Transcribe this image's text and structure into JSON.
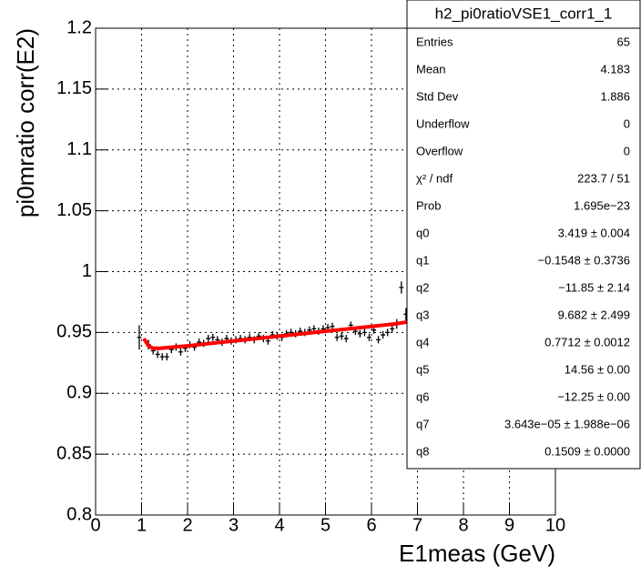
{
  "chart_data": {
    "type": "scatter",
    "x_label": "E1meas (GeV)",
    "y_label": "pi0mratio corr(E2)",
    "xlim": [
      0,
      10
    ],
    "xticks": [
      0,
      1,
      2,
      3,
      4,
      5,
      6,
      7,
      8,
      9,
      10
    ],
    "ylim": [
      0.8,
      1.2
    ],
    "yticks": [
      0.8,
      0.85,
      0.9,
      0.95,
      1,
      1.05,
      1.1,
      1.15,
      1.2
    ],
    "grid": true,
    "series": [
      {
        "color": "#000000",
        "x": [
          0.95,
          1.15,
          1.25,
          1.35,
          1.45,
          1.55,
          1.65,
          1.75,
          1.85,
          1.95,
          2.05,
          2.15,
          2.25,
          2.35,
          2.45,
          2.55,
          2.65,
          2.75,
          2.85,
          2.95,
          3.05,
          3.15,
          3.25,
          3.35,
          3.45,
          3.55,
          3.65,
          3.75,
          3.85,
          3.95,
          4.05,
          4.15,
          4.25,
          4.35,
          4.45,
          4.55,
          4.65,
          4.75,
          4.85,
          4.95,
          5.05,
          5.15,
          5.25,
          5.35,
          5.45,
          5.55,
          5.65,
          5.75,
          5.85,
          5.95,
          6.05,
          6.15,
          6.25,
          6.35,
          6.45,
          6.55,
          6.65,
          6.75
        ],
        "values": [
          0.946,
          0.94,
          0.935,
          0.932,
          0.93,
          0.93,
          0.936,
          0.938,
          0.934,
          0.937,
          0.94,
          0.938,
          0.942,
          0.941,
          0.945,
          0.946,
          0.944,
          0.942,
          0.945,
          0.943,
          0.944,
          0.945,
          0.944,
          0.946,
          0.944,
          0.947,
          0.945,
          0.943,
          0.948,
          0.947,
          0.946,
          0.949,
          0.95,
          0.949,
          0.951,
          0.95,
          0.952,
          0.953,
          0.951,
          0.953,
          0.954,
          0.955,
          0.946,
          0.947,
          0.945,
          0.956,
          0.951,
          0.949,
          0.95,
          0.946,
          0.952,
          0.944,
          0.948,
          0.95,
          0.953,
          0.957,
          0.987,
          0.965
        ],
        "errors": [
          0.01,
          0.004,
          0.003,
          0.003,
          0.003,
          0.003,
          0.003,
          0.003,
          0.003,
          0.003,
          0.003,
          0.003,
          0.003,
          0.003,
          0.003,
          0.003,
          0.003,
          0.003,
          0.003,
          0.003,
          0.003,
          0.003,
          0.003,
          0.003,
          0.003,
          0.003,
          0.003,
          0.003,
          0.003,
          0.003,
          0.003,
          0.003,
          0.003,
          0.003,
          0.003,
          0.003,
          0.003,
          0.003,
          0.003,
          0.003,
          0.003,
          0.003,
          0.003,
          0.003,
          0.003,
          0.003,
          0.003,
          0.003,
          0.003,
          0.003,
          0.003,
          0.003,
          0.003,
          0.003,
          0.003,
          0.004,
          0.005,
          0.005
        ]
      },
      {
        "color": "#ff0000",
        "style": "line",
        "x": [
          1.05,
          1.15,
          1.25,
          1.4,
          1.7,
          2,
          2.5,
          3,
          3.5,
          4,
          4.5,
          5,
          5.5,
          6,
          6.5,
          6.85
        ],
        "values": [
          0.945,
          0.939,
          0.937,
          0.937,
          0.938,
          0.939,
          0.941,
          0.943,
          0.945,
          0.947,
          0.949,
          0.951,
          0.953,
          0.955,
          0.957,
          0.959
        ]
      }
    ],
    "stats": {
      "title": "h2_pi0ratioVSE1_corr1_1",
      "rows": [
        [
          "Entries",
          "65"
        ],
        [
          "Mean",
          "4.183"
        ],
        [
          "Std Dev",
          "1.886"
        ],
        [
          "Underflow",
          "0"
        ],
        [
          "Overflow",
          "0"
        ],
        [
          "χ² / ndf",
          "223.7 / 51"
        ],
        [
          "Prob",
          "1.695e−23"
        ],
        [
          "q0",
          "3.419 ± 0.004"
        ],
        [
          "q1",
          "−0.1548 ± 0.3736"
        ],
        [
          "q2",
          "−11.85 ± 2.14"
        ],
        [
          "q3",
          "9.682 ± 2.499"
        ],
        [
          "q4",
          "0.7712 ± 0.0012"
        ],
        [
          "q5",
          "14.56 ± 0.00"
        ],
        [
          "q6",
          "−12.25 ± 0.00"
        ],
        [
          "q7",
          "3.643e−05 ± 1.988e−06"
        ],
        [
          "q8",
          "0.1509 ± 0.0000"
        ]
      ]
    }
  }
}
